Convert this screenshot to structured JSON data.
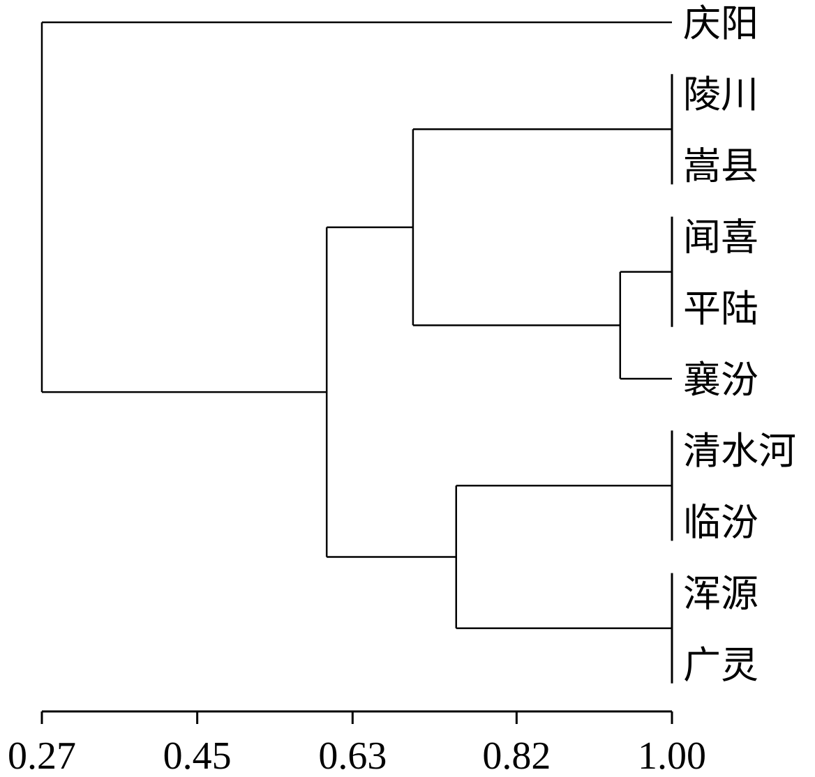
{
  "chart_data": {
    "type": "dendrogram",
    "title": "",
    "xlabel": "",
    "ylabel": "",
    "x_range": [
      0.27,
      1.0
    ],
    "x_ticks": [
      "0.27",
      "0.45",
      "0.63",
      "0.82",
      "1.00"
    ],
    "leaves": [
      "庆阳",
      "陵川",
      "嵩县",
      "闻喜",
      "平陆",
      "襄汾",
      "清水河",
      "临汾",
      "浑源",
      "广灵"
    ],
    "merges": [
      {
        "id": "n1",
        "members": [
          "陵川",
          "嵩县"
        ],
        "similarity": 1.0
      },
      {
        "id": "n2",
        "members": [
          "闻喜",
          "平陆"
        ],
        "similarity": 1.0
      },
      {
        "id": "n3",
        "members": [
          "清水河",
          "临汾"
        ],
        "similarity": 1.0
      },
      {
        "id": "n4",
        "members": [
          "浑源",
          "广灵"
        ],
        "similarity": 1.0
      },
      {
        "id": "n5",
        "members": [
          "n2",
          "襄汾"
        ],
        "similarity": 0.94
      },
      {
        "id": "n6",
        "members": [
          "n1",
          "n5"
        ],
        "similarity": 0.7
      },
      {
        "id": "n7",
        "members": [
          "n3",
          "n4"
        ],
        "similarity": 0.75
      },
      {
        "id": "n8",
        "members": [
          "n6",
          "n7"
        ],
        "similarity": 0.6
      },
      {
        "id": "n9",
        "members": [
          "庆阳",
          "n8"
        ],
        "similarity": 0.27
      }
    ]
  }
}
